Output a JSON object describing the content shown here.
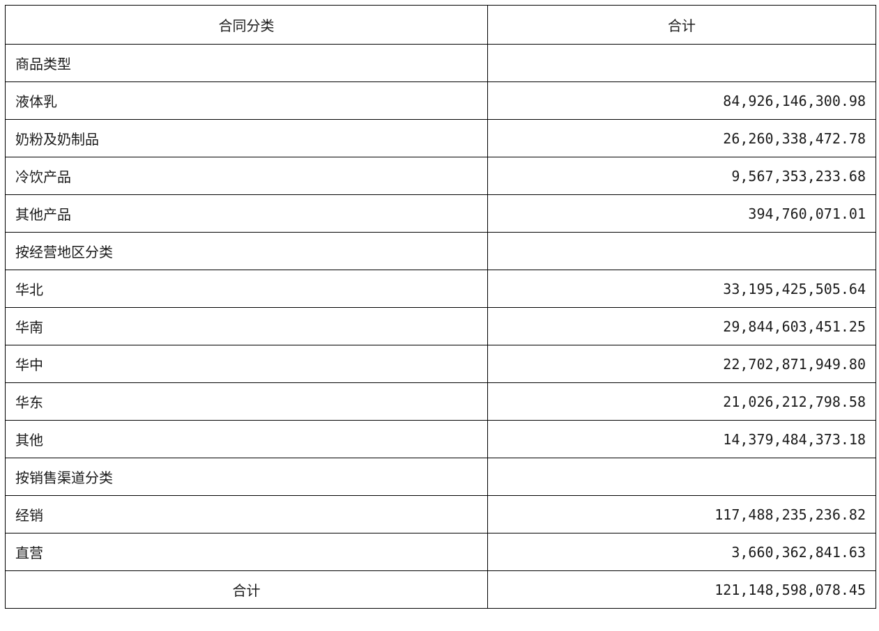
{
  "table": {
    "header": {
      "category": "合同分类",
      "total": "合计"
    },
    "groups": [
      {
        "label": "商品类型",
        "items": [
          {
            "label": "液体乳",
            "value": "84,926,146,300.98"
          },
          {
            "label": "奶粉及奶制品",
            "value": "26,260,338,472.78"
          },
          {
            "label": "冷饮产品",
            "value": "9,567,353,233.68"
          },
          {
            "label": "其他产品",
            "value": "394,760,071.01"
          }
        ]
      },
      {
        "label": "按经营地区分类",
        "items": [
          {
            "label": "华北",
            "value": "33,195,425,505.64"
          },
          {
            "label": "华南",
            "value": "29,844,603,451.25"
          },
          {
            "label": "华中",
            "value": "22,702,871,949.80"
          },
          {
            "label": "华东",
            "value": "21,026,212,798.58"
          },
          {
            "label": "其他",
            "value": "14,379,484,373.18"
          }
        ]
      },
      {
        "label": "按销售渠道分类",
        "items": [
          {
            "label": "经销",
            "value": "117,488,235,236.82"
          },
          {
            "label": "直营",
            "value": "3,660,362,841.63"
          }
        ]
      }
    ],
    "footer": {
      "label": "合计",
      "value": "121,148,598,078.45"
    }
  }
}
